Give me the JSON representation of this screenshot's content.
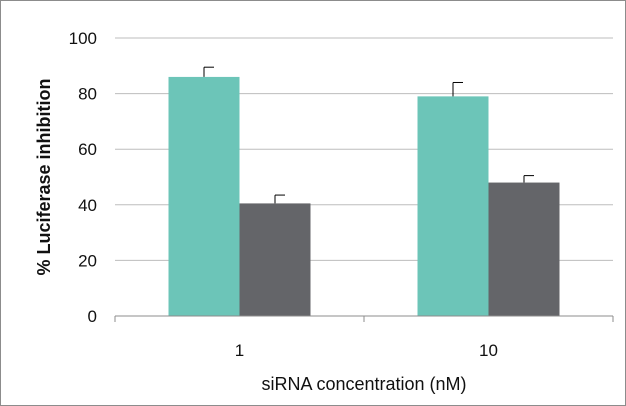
{
  "chart_data": {
    "type": "bar",
    "categories": [
      "1",
      "10"
    ],
    "series": [
      {
        "values": [
          86,
          79
        ],
        "errors": [
          3.5,
          5
        ],
        "color": "#6cc5b8"
      },
      {
        "values": [
          40.5,
          48
        ],
        "errors": [
          3,
          2.5
        ],
        "color": "#646569"
      }
    ],
    "xlabel": "siRNA concentration (nM)",
    "ylabel": "% Luciferase inhibition",
    "ylim": [
      0,
      100
    ],
    "yticks": [
      0,
      20,
      40,
      60,
      80,
      100
    ],
    "grid": true,
    "legend": "none"
  }
}
